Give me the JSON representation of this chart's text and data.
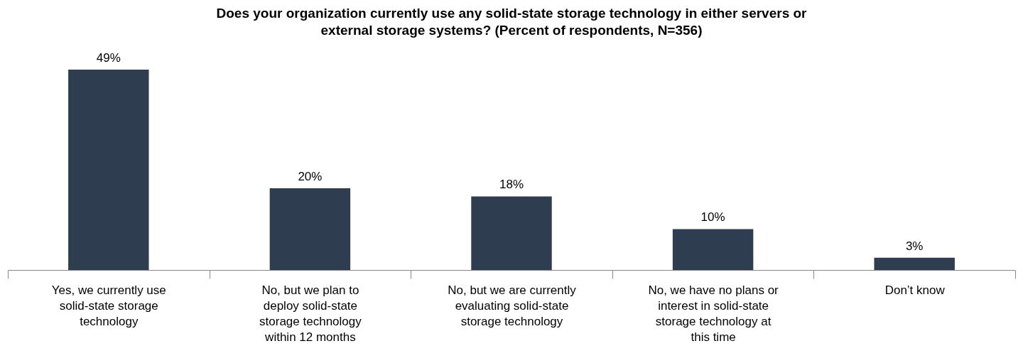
{
  "chart_data": {
    "type": "bar",
    "title": "Does your organization currently use any solid-state storage technology in either servers or external storage systems? (Percent of respondents, N=356)",
    "categories": [
      "Yes, we currently use solid-state storage technology",
      "No, but we plan to deploy solid-state storage technology within 12 months",
      "No, but we are currently evaluating solid-state storage technology",
      "No, we have no plans or interest in solid-state storage technology at this time",
      "Don’t know"
    ],
    "values": [
      49,
      20,
      18,
      10,
      3
    ],
    "color": "#2e3d4f",
    "value_labels": [
      "49%",
      "20%",
      "18%",
      "10%",
      "3%"
    ],
    "grid": false
  }
}
